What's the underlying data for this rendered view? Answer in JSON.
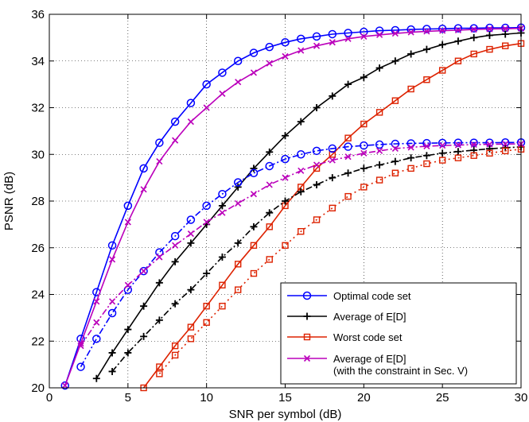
{
  "chart_data": {
    "type": "line",
    "title": "",
    "xlabel": "SNR per symbol (dB)",
    "ylabel": "PSNR (dB)",
    "xlim": [
      0,
      30
    ],
    "ylim": [
      20,
      36
    ],
    "xticks": [
      0,
      5,
      10,
      15,
      20,
      25,
      30
    ],
    "yticks": [
      20,
      22,
      24,
      26,
      28,
      30,
      32,
      34,
      36
    ],
    "grid": true,
    "legend_position": "bottom-right",
    "legend": [
      {
        "label": "Optimal code set",
        "color": "#0000ff",
        "marker": "circle"
      },
      {
        "label": "Average of E[D]",
        "color": "#000000",
        "marker": "plus"
      },
      {
        "label": "Worst code set",
        "color": "#dd2200",
        "marker": "square"
      },
      {
        "label": "Average of E[D]",
        "label2": "(with the constraint in Sec. V)",
        "color": "#bb00bb",
        "marker": "x"
      }
    ],
    "series": [
      {
        "color": "#0000ff",
        "marker": "circle",
        "dash": "solid",
        "x": [
          1,
          2,
          3,
          4,
          5,
          6,
          7,
          8,
          9,
          10,
          11,
          12,
          13,
          14,
          15,
          16,
          17,
          18,
          19,
          20,
          21,
          22,
          23,
          24,
          25,
          26,
          27,
          28,
          29,
          30
        ],
        "y": [
          20.1,
          22.1,
          24.1,
          26.1,
          27.8,
          29.4,
          30.5,
          31.4,
          32.2,
          33.0,
          33.5,
          34.0,
          34.35,
          34.6,
          34.8,
          34.95,
          35.05,
          35.15,
          35.2,
          35.25,
          35.3,
          35.32,
          35.35,
          35.37,
          35.38,
          35.4,
          35.4,
          35.42,
          35.42,
          35.43
        ]
      },
      {
        "color": "#000000",
        "marker": "plus",
        "dash": "solid",
        "x": [
          3,
          4,
          5,
          6,
          7,
          8,
          9,
          10,
          11,
          12,
          13,
          14,
          15,
          16,
          17,
          18,
          19,
          20,
          21,
          22,
          23,
          24,
          25,
          26,
          27,
          28,
          29,
          30
        ],
        "y": [
          20.4,
          21.5,
          22.5,
          23.5,
          24.5,
          25.4,
          26.2,
          27.0,
          27.8,
          28.6,
          29.4,
          30.1,
          30.8,
          31.4,
          32.0,
          32.5,
          33.0,
          33.3,
          33.7,
          34.0,
          34.3,
          34.5,
          34.7,
          34.85,
          35.0,
          35.1,
          35.15,
          35.2
        ]
      },
      {
        "color": "#dd2200",
        "marker": "square",
        "dash": "solid",
        "x": [
          6,
          7,
          8,
          9,
          10,
          11,
          12,
          13,
          14,
          15,
          16,
          17,
          18,
          19,
          20,
          21,
          22,
          23,
          24,
          25,
          26,
          27,
          28,
          29,
          30
        ],
        "y": [
          20.0,
          20.9,
          21.8,
          22.6,
          23.5,
          24.4,
          25.3,
          26.1,
          26.9,
          27.8,
          28.6,
          29.4,
          30.0,
          30.7,
          31.3,
          31.8,
          32.3,
          32.8,
          33.2,
          33.6,
          34.0,
          34.3,
          34.5,
          34.65,
          34.75
        ]
      },
      {
        "color": "#bb00bb",
        "marker": "x",
        "dash": "solid",
        "x": [
          1,
          2,
          3,
          4,
          5,
          6,
          7,
          8,
          9,
          10,
          11,
          12,
          13,
          14,
          15,
          16,
          17,
          18,
          19,
          20,
          21,
          22,
          23,
          24,
          25,
          26,
          27,
          28,
          29,
          30
        ],
        "y": [
          20.1,
          21.9,
          23.7,
          25.5,
          27.1,
          28.5,
          29.7,
          30.6,
          31.4,
          32.0,
          32.6,
          33.1,
          33.5,
          33.9,
          34.2,
          34.45,
          34.65,
          34.8,
          34.95,
          35.05,
          35.12,
          35.18,
          35.23,
          35.27,
          35.3,
          35.32,
          35.35,
          35.37,
          35.38,
          35.4
        ]
      },
      {
        "color": "#0000ff",
        "marker": "circle",
        "dash": "dashdot",
        "x": [
          2,
          3,
          4,
          5,
          6,
          7,
          8,
          9,
          10,
          11,
          12,
          13,
          14,
          15,
          16,
          17,
          18,
          19,
          20,
          21,
          22,
          23,
          24,
          25,
          26,
          27,
          28,
          29,
          30
        ],
        "y": [
          20.9,
          22.1,
          23.2,
          24.2,
          25.0,
          25.8,
          26.5,
          27.2,
          27.8,
          28.3,
          28.8,
          29.2,
          29.5,
          29.8,
          30.0,
          30.15,
          30.25,
          30.33,
          30.38,
          30.42,
          30.45,
          30.47,
          30.48,
          30.49,
          30.5,
          30.5,
          30.5,
          30.51,
          30.51
        ]
      },
      {
        "color": "#000000",
        "marker": "plus",
        "dash": "dashdot",
        "x": [
          4,
          5,
          6,
          7,
          8,
          9,
          10,
          11,
          12,
          13,
          14,
          15,
          16,
          17,
          18,
          19,
          20,
          21,
          22,
          23,
          24,
          25,
          26,
          27,
          28,
          29,
          30
        ],
        "y": [
          20.7,
          21.5,
          22.2,
          22.9,
          23.6,
          24.2,
          24.9,
          25.6,
          26.2,
          26.9,
          27.5,
          28.0,
          28.4,
          28.7,
          29.0,
          29.2,
          29.4,
          29.55,
          29.7,
          29.85,
          29.95,
          30.05,
          30.12,
          30.18,
          30.24,
          30.28,
          30.32
        ]
      },
      {
        "color": "#dd2200",
        "marker": "square",
        "dash": "dotted",
        "x": [
          7,
          8,
          9,
          10,
          11,
          12,
          13,
          14,
          15,
          16,
          17,
          18,
          19,
          20,
          21,
          22,
          23,
          24,
          25,
          26,
          27,
          28,
          29,
          30
        ],
        "y": [
          20.6,
          21.4,
          22.1,
          22.8,
          23.5,
          24.2,
          24.9,
          25.5,
          26.1,
          26.7,
          27.2,
          27.7,
          28.2,
          28.6,
          28.9,
          29.2,
          29.4,
          29.6,
          29.75,
          29.85,
          29.95,
          30.05,
          30.15,
          30.22
        ]
      },
      {
        "color": "#bb00bb",
        "marker": "x",
        "dash": "dashdot",
        "x": [
          2,
          3,
          4,
          5,
          6,
          7,
          8,
          9,
          10,
          11,
          12,
          13,
          14,
          15,
          16,
          17,
          18,
          19,
          20,
          21,
          22,
          23,
          24,
          25,
          26,
          27,
          28,
          29,
          30
        ],
        "y": [
          21.8,
          22.8,
          23.7,
          24.4,
          25.0,
          25.6,
          26.1,
          26.6,
          27.1,
          27.5,
          27.9,
          28.3,
          28.7,
          29.0,
          29.3,
          29.55,
          29.75,
          29.9,
          30.05,
          30.15,
          30.25,
          30.3,
          30.35,
          30.38,
          30.4,
          30.42,
          30.43,
          30.44,
          30.45
        ]
      }
    ]
  }
}
